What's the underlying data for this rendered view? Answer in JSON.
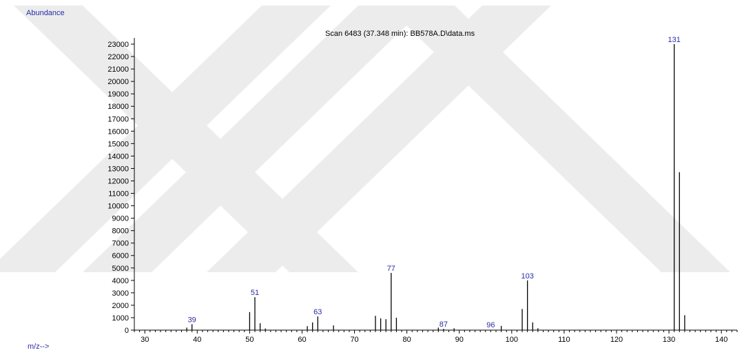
{
  "chart_data": {
    "type": "bar",
    "title": "Scan 6483 (37.348 min): BB578A.D\\data.ms",
    "ylabel": "Abundance",
    "xlabel": "m/z-->",
    "xlim": [
      28,
      143
    ],
    "ylim": [
      0,
      23500
    ],
    "grid": false,
    "x_ticks": [
      30,
      40,
      50,
      60,
      70,
      80,
      90,
      100,
      110,
      120,
      130,
      140
    ],
    "y_ticks": [
      0,
      1000,
      2000,
      3000,
      4000,
      5000,
      6000,
      7000,
      8000,
      9000,
      10000,
      11000,
      12000,
      13000,
      14000,
      15000,
      16000,
      17000,
      18000,
      19000,
      20000,
      21000,
      22000,
      23000
    ],
    "series": [
      {
        "x": [
          38,
          39,
          50,
          51,
          52,
          53,
          61,
          62,
          63,
          66,
          74,
          75,
          76,
          77,
          78,
          86,
          87,
          89,
          98,
          102,
          103,
          104,
          105,
          131,
          132,
          133
        ],
        "values": [
          200,
          480,
          1450,
          2650,
          550,
          130,
          320,
          620,
          1100,
          380,
          1150,
          950,
          880,
          4600,
          1000,
          200,
          100,
          150,
          340,
          1700,
          4000,
          620,
          150,
          23000,
          12700,
          1200
        ]
      }
    ],
    "peak_labels": [
      {
        "x": 39,
        "y": 480,
        "text": "39"
      },
      {
        "x": 51,
        "y": 2650,
        "text": "51"
      },
      {
        "x": 63,
        "y": 1100,
        "text": "63"
      },
      {
        "x": 77,
        "y": 4600,
        "text": "77"
      },
      {
        "x": 87,
        "y": 100,
        "text": "87"
      },
      {
        "x": 96,
        "y": 60,
        "text": "96"
      },
      {
        "x": 103,
        "y": 4000,
        "text": "103"
      },
      {
        "x": 131,
        "y": 23000,
        "text": "131"
      }
    ],
    "colors": {
      "bars": "#000000",
      "labels": "#2a2aa8",
      "axis": "#000000",
      "watermark": "#ececec"
    }
  }
}
